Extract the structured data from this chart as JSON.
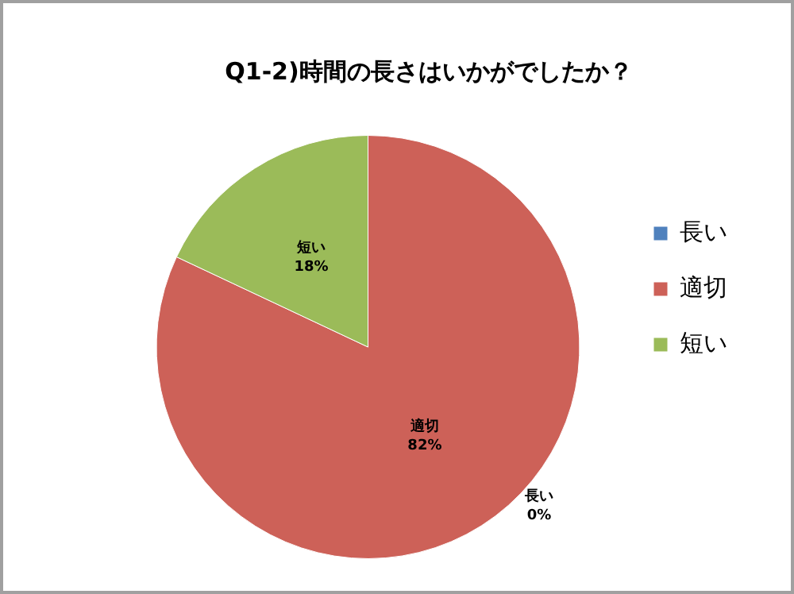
{
  "chart_data": {
    "type": "pie",
    "title": "Q1-2)時間の長さはいかがでしたか？",
    "categories": [
      "長い",
      "適切",
      "短い"
    ],
    "values": [
      0,
      82,
      18
    ],
    "colors": [
      "#4f81bd",
      "#cd6158",
      "#9bbb59"
    ],
    "value_labels": [
      "0%",
      "82%",
      "18%"
    ],
    "legend": "right"
  }
}
